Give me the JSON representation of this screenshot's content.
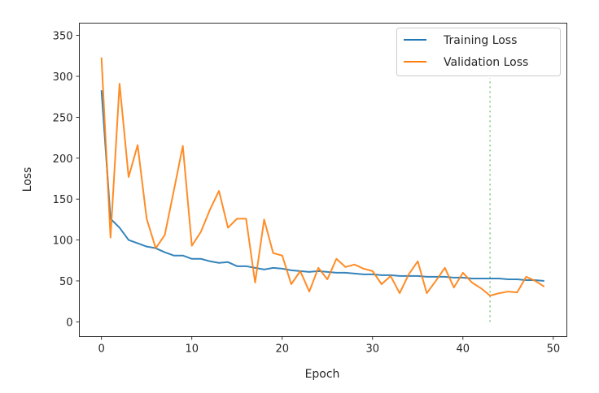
{
  "chart_data": {
    "type": "line",
    "title": "",
    "xlabel": "Epoch",
    "ylabel": "Loss",
    "xlim": [
      -2.45,
      51.5
    ],
    "ylim": [
      -18,
      365
    ],
    "xticks": [
      0,
      10,
      20,
      30,
      40,
      50
    ],
    "yticks": [
      0,
      50,
      100,
      150,
      200,
      250,
      300,
      350
    ],
    "grid": false,
    "legend_position": "top-right",
    "x": [
      0,
      1,
      2,
      3,
      4,
      5,
      6,
      7,
      8,
      9,
      10,
      11,
      12,
      13,
      14,
      15,
      16,
      17,
      18,
      19,
      20,
      21,
      22,
      23,
      24,
      25,
      26,
      27,
      28,
      29,
      30,
      31,
      32,
      33,
      34,
      35,
      36,
      37,
      38,
      39,
      40,
      41,
      42,
      43,
      44,
      45,
      46,
      47,
      48,
      49
    ],
    "series": [
      {
        "name": "Training Loss",
        "color": "#1f77b4",
        "values": [
          283,
          126,
          115,
          100,
          96,
          92,
          90,
          85,
          81,
          81,
          77,
          77,
          74,
          72,
          73,
          68,
          68,
          66,
          64,
          66,
          65,
          63,
          62,
          61,
          62,
          61,
          60,
          60,
          59,
          58,
          58,
          57,
          57,
          56,
          56,
          56,
          55,
          55,
          55,
          54,
          54,
          53,
          53,
          53,
          53,
          52,
          52,
          51,
          51,
          50
        ]
      },
      {
        "name": "Validation Loss",
        "color": "#ff7f0e",
        "values": [
          323,
          103,
          291,
          177,
          216,
          126,
          90,
          106,
          160,
          215,
          93,
          110,
          137,
          160,
          115,
          126,
          126,
          48,
          125,
          84,
          81,
          46,
          62,
          37,
          66,
          52,
          77,
          67,
          70,
          65,
          62,
          46,
          56,
          35,
          58,
          74,
          35,
          50,
          66,
          42,
          60,
          48,
          41,
          32,
          35,
          37,
          36,
          55,
          50,
          43
        ]
      }
    ],
    "annotations": [
      {
        "type": "vline",
        "x": 43,
        "y_range": [
          0,
          298
        ],
        "color": "#2ca02c",
        "style": "dotted"
      }
    ]
  }
}
